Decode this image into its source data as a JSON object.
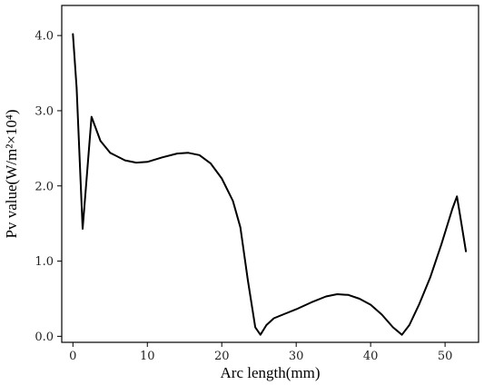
{
  "chart_data": {
    "type": "line",
    "xlabel": "Arc length(mm)",
    "ylabel": "Pv value(W/m²×10⁴)",
    "xlim": [
      -1.5,
      54.5
    ],
    "ylim": [
      -0.08,
      4.4
    ],
    "xticks": [
      0,
      10,
      20,
      30,
      40,
      50
    ],
    "xtick_labels": [
      "0",
      "10",
      "20",
      "30",
      "40",
      "50"
    ],
    "yticks": [
      0.0,
      1.0,
      2.0,
      3.0,
      4.0
    ],
    "ytick_labels": [
      "0.0",
      "1.0",
      "2.0",
      "3.0",
      "4.0"
    ],
    "grid": false,
    "series": [
      {
        "x": [
          0,
          0.5,
          1.3,
          2.5,
          3.7,
          5,
          7,
          8.5,
          10,
          12,
          14,
          15.5,
          17,
          18.5,
          20,
          21.5,
          22.5,
          23.5,
          24.5,
          25.2,
          26,
          27,
          28.5,
          30,
          32,
          34,
          35.5,
          37,
          38.5,
          40,
          41.5,
          43,
          44.2,
          45.2,
          46.5,
          48,
          49.5,
          51,
          51.6,
          52,
          52.8
        ],
        "y": [
          4.02,
          3.3,
          1.43,
          2.92,
          2.6,
          2.44,
          2.34,
          2.31,
          2.32,
          2.38,
          2.43,
          2.44,
          2.41,
          2.3,
          2.1,
          1.8,
          1.45,
          0.75,
          0.12,
          0.02,
          0.15,
          0.24,
          0.3,
          0.36,
          0.45,
          0.53,
          0.56,
          0.55,
          0.5,
          0.42,
          0.29,
          0.12,
          0.02,
          0.15,
          0.42,
          0.78,
          1.22,
          1.7,
          1.86,
          1.62,
          1.13
        ]
      }
    ]
  }
}
